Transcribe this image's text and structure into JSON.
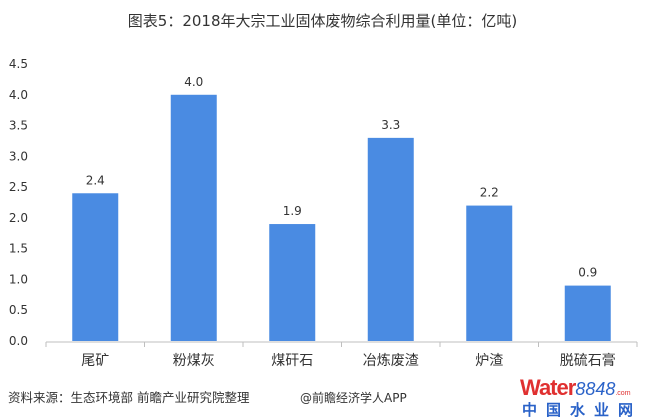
{
  "chart_data": {
    "type": "bar",
    "title": "图表5：2018年大宗工业固体废物综合利用量(单位：亿吨)",
    "categories": [
      "尾矿",
      "粉煤灰",
      "煤矸石",
      "冶炼废渣",
      "炉渣",
      "脱硫石膏"
    ],
    "values": [
      2.4,
      4.0,
      1.9,
      3.3,
      2.2,
      0.9
    ],
    "data_labels": [
      "2.4",
      "4.0",
      "1.9",
      "3.3",
      "2.2",
      "0.9"
    ],
    "yticks": [
      "0.0",
      "0.5",
      "1.0",
      "1.5",
      "2.0",
      "2.5",
      "3.0",
      "3.5",
      "4.0",
      "4.5"
    ],
    "ylim": [
      0,
      4.5
    ],
    "grid": false,
    "bar_color": "#4A8BE2",
    "xlabel": "",
    "ylabel": ""
  },
  "footer": {
    "source": "资料来源：生态环境部 前瞻产业研究院整理",
    "credit": "@前瞻经济学人APP"
  },
  "watermark": {
    "brand": "Water",
    "number": "8848",
    "domain": ".com",
    "chinese": "中国水业网"
  }
}
